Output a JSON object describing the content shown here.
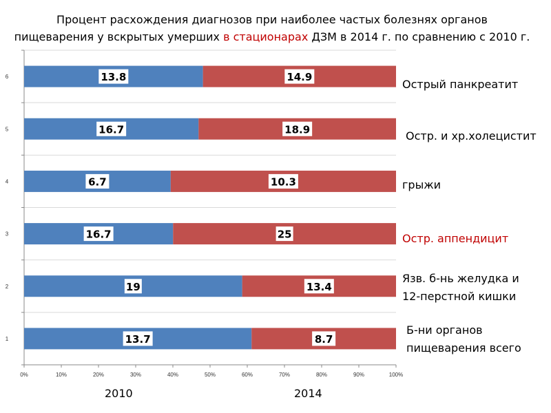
{
  "title": {
    "line1": "Процент расхождения диагнозов при наиболее частых  болезнях органов",
    "line2_pre": "пищеварения у вскрытых умерших ",
    "line2_highlight": "в стационарах",
    "line2_post": " ДЗМ в 2014 г. по сравнению  с 2010 г."
  },
  "colors": {
    "series_2010": "#4f81bd",
    "series_2014": "#c0504d",
    "highlight": "#c00000"
  },
  "chart_data": {
    "type": "bar",
    "orientation": "horizontal",
    "stacking": "percent",
    "categories": [
      "1",
      "2",
      "3",
      "4",
      "5",
      "6"
    ],
    "series": [
      {
        "name": "2010",
        "values": [
          13.7,
          19,
          16.7,
          6.7,
          16.7,
          13.8
        ]
      },
      {
        "name": "2014",
        "values": [
          8.7,
          13.4,
          25,
          10.3,
          18.9,
          14.9
        ]
      }
    ],
    "xticks": [
      "0%",
      "10%",
      "20%",
      "30%",
      "40%",
      "50%",
      "60%",
      "70%",
      "80%",
      "90%",
      "100%"
    ],
    "xlim": [
      0,
      100
    ]
  },
  "category_labels": [
    {
      "lines": [
        "Б-ни органов",
        "пищеварения всего"
      ],
      "highlight": false
    },
    {
      "lines": [
        "Язв. б-нь желудка и",
        "12-перстной кишки"
      ],
      "highlight": false
    },
    {
      "lines": [
        "Остр. аппендицит"
      ],
      "highlight": true
    },
    {
      "lines": [
        "грыжи"
      ],
      "highlight": false
    },
    {
      "lines": [
        "Остр. и хр.холецистит"
      ],
      "highlight": false
    },
    {
      "lines": [
        "Острый панкреатит"
      ],
      "highlight": false
    }
  ],
  "legend": {
    "year_2010": "2010",
    "year_2014": "2014"
  }
}
